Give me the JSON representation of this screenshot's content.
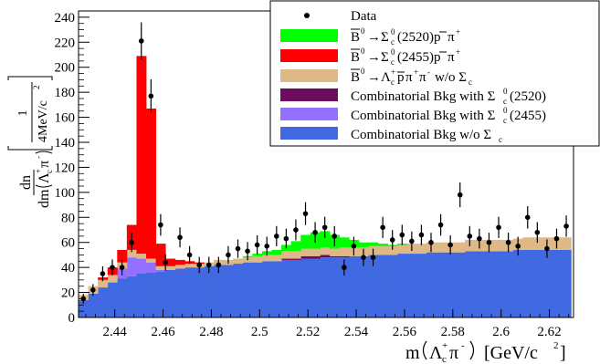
{
  "chart_data": {
    "type": "bar",
    "stacked": true,
    "xlim": [
      2.425,
      2.63
    ],
    "ylim": [
      0,
      245
    ],
    "xticks": [
      "2.44",
      "2.46",
      "2.48",
      "2.5",
      "2.52",
      "2.54",
      "2.56",
      "2.58",
      "2.6",
      "2.62"
    ],
    "yticks": [
      "0",
      "20",
      "40",
      "60",
      "80",
      "100",
      "120",
      "140",
      "160",
      "180",
      "200",
      "220",
      "240"
    ],
    "xlabel": {
      "main": "m",
      "particle": "Λ",
      "sup": "+",
      "sub": "c",
      "tail": "π",
      "tail_sup": "-",
      "unit": "[GeV/c",
      "unit_sup": "2",
      "unit_close": "]"
    },
    "ylabel": {
      "dn": "dn",
      "dm": "dm",
      "particle": "Λ",
      "sup": "+",
      "sub": "c",
      "tail": "π",
      "tail_sup": "-",
      "num": "1",
      "den": "4MeV/c",
      "den_sup": "2"
    },
    "bin_edges": [
      2.425,
      2.429,
      2.433,
      2.437,
      2.441,
      2.445,
      2.449,
      2.453,
      2.457,
      2.461,
      2.465,
      2.469,
      2.473,
      2.477,
      2.481,
      2.485,
      2.489,
      2.493,
      2.497,
      2.501,
      2.505,
      2.509,
      2.513,
      2.517,
      2.521,
      2.525,
      2.529,
      2.533,
      2.537,
      2.541,
      2.545,
      2.549,
      2.553,
      2.557,
      2.561,
      2.565,
      2.569,
      2.573,
      2.577,
      2.581,
      2.585,
      2.589,
      2.593,
      2.597,
      2.601,
      2.605,
      2.609,
      2.613,
      2.617,
      2.621,
      2.625,
      2.629
    ],
    "series": [
      {
        "name": "Combinatorial Bkg w/o Σ_c",
        "color": "#4169e1",
        "values": [
          14,
          19,
          24,
          28,
          31,
          33,
          35,
          36,
          37,
          38,
          39,
          40,
          40,
          41,
          42,
          42,
          43,
          44,
          44,
          45,
          45,
          46,
          46,
          47,
          47,
          48,
          48,
          48,
          49,
          49,
          50,
          50,
          50,
          51,
          51,
          51,
          52,
          52,
          52,
          52,
          53,
          53,
          53,
          53,
          53,
          54,
          54,
          54,
          54,
          54,
          54
        ]
      },
      {
        "name": "Combinatorial Bkg with Σ_c^0(2455)",
        "color": "#9370ff",
        "values": [
          0,
          0,
          0,
          0,
          8,
          15,
          12,
          8,
          1,
          0,
          0,
          0,
          0,
          0,
          0,
          0,
          0,
          0,
          0,
          0,
          0,
          0,
          0,
          0,
          0,
          0,
          0,
          0,
          0,
          0,
          0,
          0,
          0,
          0,
          0,
          0,
          0,
          0,
          0,
          0,
          0,
          0,
          0,
          0,
          0,
          0,
          0,
          0,
          0,
          0,
          0
        ]
      },
      {
        "name": "Combinatorial Bkg with Σ_c^0(2520)",
        "color": "#6b0a5e",
        "values": [
          0,
          0,
          0,
          0,
          0,
          0,
          0,
          0,
          0,
          0,
          0,
          0,
          0,
          0,
          0,
          0,
          0,
          0,
          0,
          0,
          0,
          1,
          1,
          2,
          2,
          2,
          1,
          1,
          0,
          0,
          0,
          0,
          0,
          0,
          0,
          0,
          0,
          0,
          0,
          0,
          0,
          0,
          0,
          0,
          0,
          0,
          0,
          0,
          0,
          0,
          0
        ]
      },
      {
        "name": "B̄^0→Λ_c^+p̄π^+π^- w/o Σ_c",
        "color": "#deb887",
        "values": [
          4,
          6,
          6,
          6,
          5,
          6,
          4,
          3,
          3,
          3,
          3,
          3,
          3,
          3,
          4,
          4,
          4,
          4,
          5,
          5,
          5,
          6,
          6,
          6,
          6,
          6,
          6,
          7,
          7,
          7,
          7,
          7,
          7,
          7,
          8,
          8,
          8,
          8,
          8,
          8,
          9,
          9,
          9,
          9,
          9,
          9,
          10,
          10,
          10,
          10,
          10
        ]
      },
      {
        "name": "B̄^0→Σ_c^0(2455)p̄π^+",
        "color": "#ff0000",
        "values": [
          0,
          0,
          2,
          6,
          10,
          20,
          158,
          120,
          18,
          6,
          4,
          2,
          1,
          0,
          0,
          0,
          0,
          0,
          0,
          0,
          0,
          0,
          0,
          0,
          0,
          0,
          0,
          0,
          0,
          0,
          0,
          0,
          0,
          0,
          0,
          0,
          0,
          0,
          0,
          0,
          0,
          0,
          0,
          0,
          0,
          0,
          0,
          0,
          0,
          0,
          0
        ]
      },
      {
        "name": "B̄^0→Σ_c^0(2520)p̄π^+",
        "color": "#00ff00",
        "values": [
          0,
          0,
          0,
          0,
          0,
          0,
          0,
          0,
          0,
          0,
          0,
          0,
          0,
          0,
          0,
          0,
          0,
          1,
          2,
          3,
          4,
          5,
          8,
          11,
          13,
          13,
          11,
          8,
          6,
          4,
          3,
          2,
          1,
          1,
          0,
          0,
          0,
          0,
          0,
          0,
          0,
          0,
          0,
          0,
          0,
          0,
          0,
          0,
          0,
          0,
          0
        ]
      }
    ],
    "data_points": {
      "name": "Data",
      "x": [
        2.427,
        2.431,
        2.435,
        2.439,
        2.443,
        2.447,
        2.451,
        2.455,
        2.459,
        2.461,
        2.467,
        2.471,
        2.475,
        2.479,
        2.483,
        2.487,
        2.491,
        2.495,
        2.499,
        2.503,
        2.507,
        2.511,
        2.515,
        2.519,
        2.523,
        2.527,
        2.531,
        2.535,
        2.539,
        2.543,
        2.547,
        2.551,
        2.555,
        2.559,
        2.563,
        2.567,
        2.571,
        2.575,
        2.579,
        2.583,
        2.587,
        2.591,
        2.595,
        2.599,
        2.603,
        2.607,
        2.611,
        2.615,
        2.619,
        2.623,
        2.627
      ],
      "y": [
        15,
        22,
        35,
        40,
        40,
        60,
        221,
        177,
        74,
        44,
        64,
        50,
        42,
        42,
        42,
        50,
        55,
        53,
        58,
        57,
        65,
        63,
        70,
        83,
        68,
        72,
        65,
        40,
        57,
        48,
        48,
        72,
        62,
        66,
        61,
        66,
        60,
        74,
        58,
        98,
        65,
        63,
        60,
        72,
        60,
        57,
        80,
        68,
        55,
        63,
        73
      ]
    },
    "legend": {
      "position": "top-right"
    }
  }
}
